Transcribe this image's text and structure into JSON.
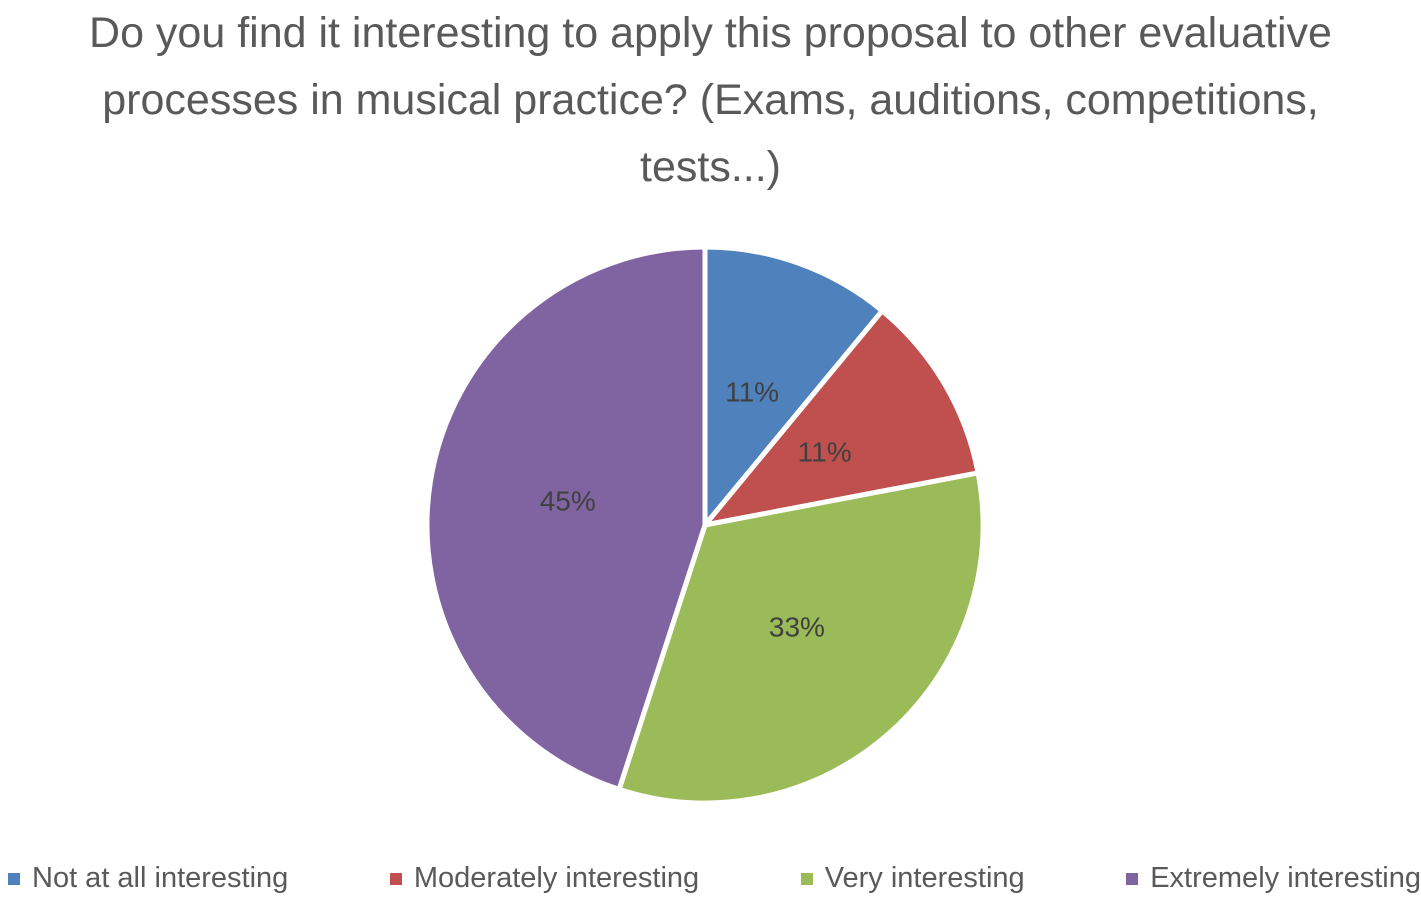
{
  "chart_data": {
    "type": "pie",
    "title": "Do you find it interesting to apply this proposal to other evaluative processes in musical practice? (Exams, auditions, competitions, tests...)",
    "categories": [
      "Not at all interesting",
      "Moderately interesting",
      "Very interesting",
      "Extremely interesting"
    ],
    "values": [
      11,
      11,
      33,
      45
    ],
    "value_labels": [
      "11%",
      "11%",
      "33%",
      "45%"
    ],
    "colors": [
      "#4f81bd",
      "#c0504d",
      "#9bbb59",
      "#8064a2"
    ],
    "legend": "bottom"
  }
}
